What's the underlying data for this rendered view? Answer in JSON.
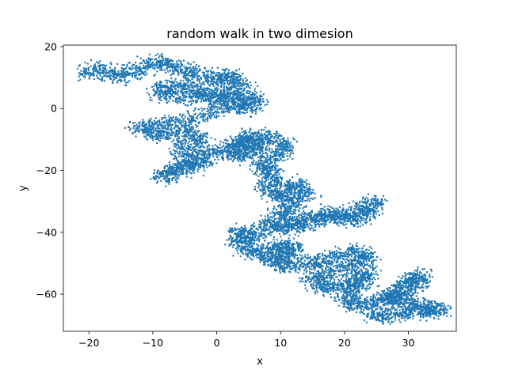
{
  "chart_data": {
    "type": "scatter",
    "title": "random walk in two dimesion",
    "xlabel": "x",
    "ylabel": "y",
    "xlim": [
      -24,
      37.5
    ],
    "ylim": [
      -72,
      20.5
    ],
    "xticks": [
      -20,
      -10,
      0,
      10,
      20,
      30
    ],
    "yticks": [
      -60,
      -40,
      -20,
      0,
      20
    ],
    "xtick_labels": [
      "−20",
      "−10",
      "0",
      "10",
      "20",
      "30"
    ],
    "ytick_labels": [
      "−60",
      "−40",
      "−20",
      "0",
      "20"
    ],
    "grid": false,
    "legend": "none",
    "series": [
      {
        "color": "#1f77b4",
        "marker": "square",
        "point_count_estimate": 10000,
        "path_anchors": [
          [
            -21,
            11
          ],
          [
            -18,
            13
          ],
          [
            -15,
            10
          ],
          [
            -12,
            13
          ],
          [
            -9,
            15
          ],
          [
            -6,
            13
          ],
          [
            -3,
            11
          ],
          [
            0,
            9
          ],
          [
            2,
            11
          ],
          [
            4,
            7
          ],
          [
            1,
            4
          ],
          [
            -3,
            6
          ],
          [
            -7,
            8
          ],
          [
            -9,
            5
          ],
          [
            -5,
            3
          ],
          [
            -1,
            5
          ],
          [
            3,
            2
          ],
          [
            6,
            4
          ],
          [
            5,
            0
          ],
          [
            1,
            1
          ],
          [
            -3,
            -3
          ],
          [
            -8,
            -5
          ],
          [
            -12,
            -6
          ],
          [
            -9,
            -9
          ],
          [
            -5,
            -7
          ],
          [
            -2,
            -10
          ],
          [
            -6,
            -13
          ],
          [
            -2,
            -17
          ],
          [
            -5,
            -20
          ],
          [
            -9,
            -22
          ],
          [
            -6,
            -19
          ],
          [
            -2,
            -15
          ],
          [
            2,
            -13
          ],
          [
            4,
            -10
          ],
          [
            7,
            -12
          ],
          [
            5,
            -15
          ],
          [
            2,
            -15
          ],
          [
            5,
            -9
          ],
          [
            8,
            -9
          ],
          [
            11,
            -12
          ],
          [
            9,
            -16
          ],
          [
            7,
            -19
          ],
          [
            9,
            -22
          ],
          [
            8,
            -26
          ],
          [
            10,
            -29
          ],
          [
            12,
            -24
          ],
          [
            14,
            -27
          ],
          [
            12,
            -31
          ],
          [
            10,
            -34
          ],
          [
            12,
            -38
          ],
          [
            15,
            -35
          ],
          [
            18,
            -34
          ],
          [
            20,
            -36
          ],
          [
            23,
            -35
          ],
          [
            25,
            -30
          ],
          [
            22,
            -33
          ],
          [
            16,
            -36
          ],
          [
            11,
            -39
          ],
          [
            8,
            -37
          ],
          [
            6,
            -41
          ],
          [
            3,
            -40
          ],
          [
            4,
            -44
          ],
          [
            6,
            -47
          ],
          [
            9,
            -45
          ],
          [
            12,
            -44
          ],
          [
            11,
            -48
          ],
          [
            8,
            -48
          ],
          [
            10,
            -51
          ],
          [
            14,
            -50
          ],
          [
            17,
            -49
          ],
          [
            21,
            -46
          ],
          [
            24,
            -48
          ],
          [
            21,
            -51
          ],
          [
            17,
            -53
          ],
          [
            15,
            -56
          ],
          [
            18,
            -58
          ],
          [
            21,
            -56
          ],
          [
            24,
            -53
          ],
          [
            22,
            -57
          ],
          [
            20,
            -61
          ],
          [
            22,
            -64
          ],
          [
            25,
            -62
          ],
          [
            28,
            -60
          ],
          [
            30,
            -56
          ],
          [
            32,
            -54
          ],
          [
            30,
            -59
          ],
          [
            27,
            -62
          ],
          [
            30,
            -63
          ],
          [
            33,
            -64
          ],
          [
            35,
            -65
          ],
          [
            31,
            -66
          ],
          [
            27,
            -67
          ],
          [
            24,
            -66
          ]
        ]
      }
    ]
  }
}
